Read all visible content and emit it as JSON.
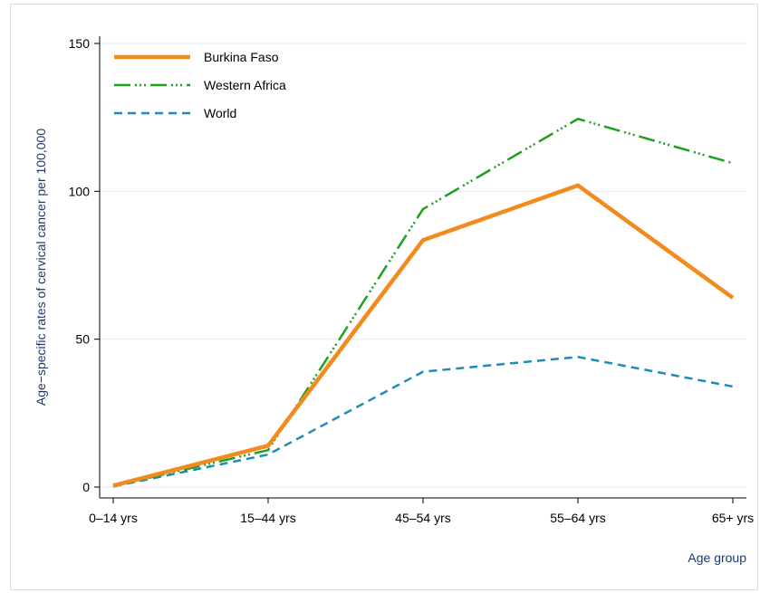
{
  "chart_data": {
    "type": "line",
    "categories": [
      "0–14 yrs",
      "15–44 yrs",
      "45–54 yrs",
      "55–64 yrs",
      "65+ yrs"
    ],
    "series": [
      {
        "name": "Burkina Faso",
        "values": [
          0.5,
          14,
          83.5,
          102,
          64
        ],
        "color": "#f28a1e",
        "style": "solid"
      },
      {
        "name": "Western Africa",
        "values": [
          0.3,
          12.5,
          94,
          124.5,
          109.5
        ],
        "color": "#1ea01e",
        "style": "dash-dot"
      },
      {
        "name": "World",
        "values": [
          0.2,
          11,
          39,
          44,
          34
        ],
        "color": "#1f8cb8",
        "style": "dashed"
      }
    ],
    "title": "",
    "xlabel": "Age group",
    "ylabel": "Age−specific rates of cervical cancer per 100,000",
    "ylim": [
      0,
      150
    ],
    "yticks": [
      0,
      50,
      100,
      150
    ],
    "grid": true,
    "legend_position": "top-left"
  }
}
